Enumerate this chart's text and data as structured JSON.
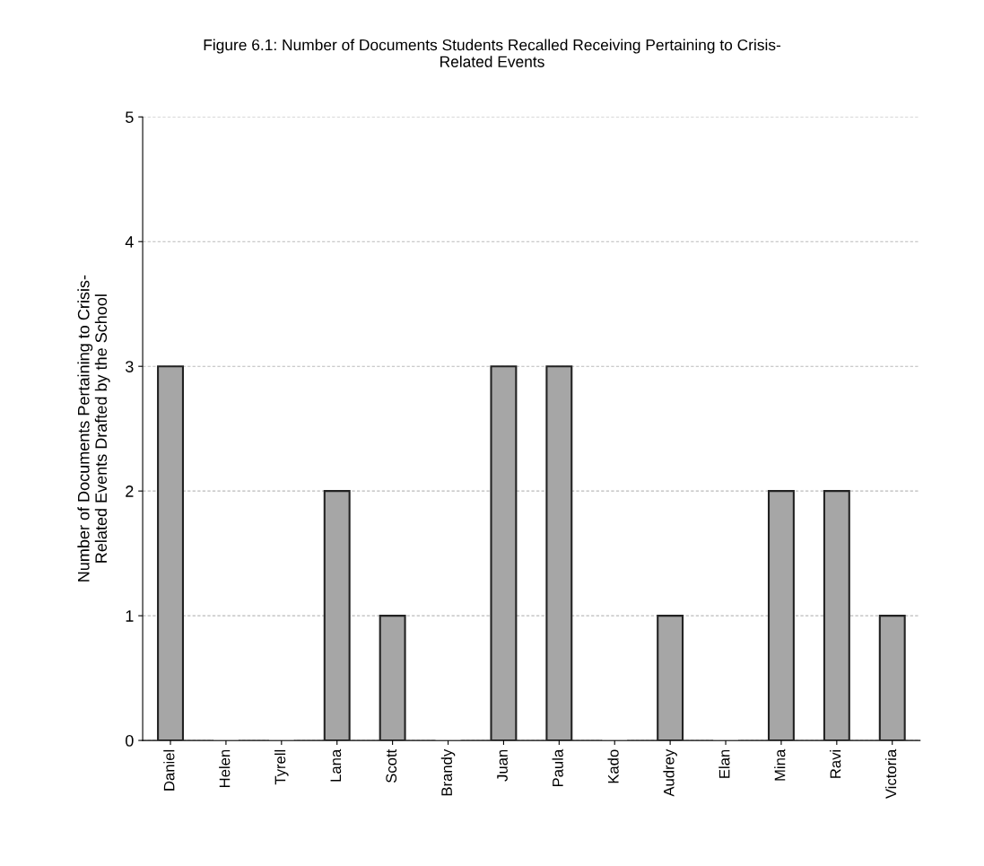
{
  "chart_data": {
    "type": "bar",
    "title": "Figure 6.1: Number of Documents Students Recalled Receiving Pertaining to Crisis-\nRelated Events",
    "ylabel": "Number of Documents Pertaining to Crisis-\nRelated Events Drafted by the School",
    "categories": [
      "Daniel",
      "Helen",
      "Tyrell",
      "Lana",
      "Scott",
      "Brandy",
      "Juan",
      "Paula",
      "Kado",
      "Audrey",
      "Elan",
      "Mina",
      "Ravi",
      "Victoria"
    ],
    "values": [
      3,
      0,
      0,
      2,
      1,
      0,
      3,
      3,
      0,
      1,
      0,
      2,
      2,
      1
    ],
    "color": "#a6a6a6",
    "ylim": [
      0,
      5
    ],
    "yticks": [
      0,
      1,
      2,
      3,
      4,
      5
    ],
    "grid": "y"
  }
}
